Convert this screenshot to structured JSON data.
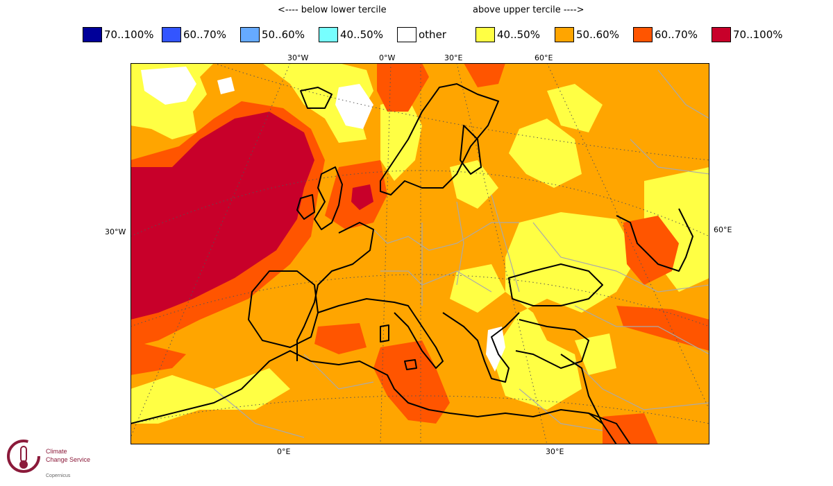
{
  "header": {
    "below_note": "<---- below lower tercile",
    "above_note": "above upper tercile ---->"
  },
  "legend": [
    {
      "label": "70..100%",
      "color": "#000099"
    },
    {
      "label": "60..70%",
      "color": "#3355ff"
    },
    {
      "label": "50..60%",
      "color": "#66aaff"
    },
    {
      "label": "40..50%",
      "color": "#77ffff"
    },
    {
      "label": "other",
      "color": "#ffffff"
    },
    {
      "label": "40..50%",
      "color": "#ffff44"
    },
    {
      "label": "50..60%",
      "color": "#ffa500"
    },
    {
      "label": "60..70%",
      "color": "#ff5500"
    },
    {
      "label": "70..100%",
      "color": "#c8002a"
    }
  ],
  "map": {
    "top_labels": [
      "30°W",
      "0°W",
      "30°E",
      "60°E"
    ],
    "bottom_labels": [
      "0°E",
      "30°E"
    ],
    "left_label": "30°W",
    "right_label": "60°E"
  },
  "logo": {
    "line1": "Climate",
    "line2": "Change Service",
    "line3": "Copernicus"
  }
}
